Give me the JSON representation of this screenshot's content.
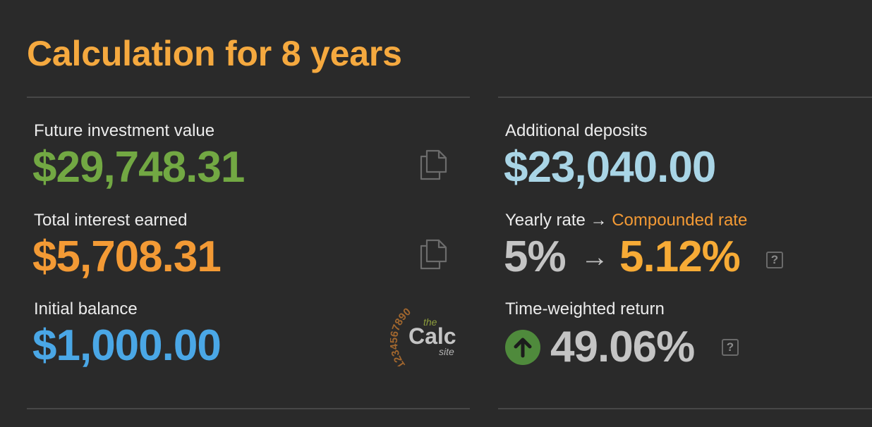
{
  "title": "Calculation for 8 years",
  "left": {
    "future_value": {
      "label": "Future investment value",
      "value": "$29,748.31"
    },
    "total_interest": {
      "label": "Total interest earned",
      "value": "$5,708.31"
    },
    "initial_balance": {
      "label": "Initial balance",
      "value": "$1,000.00"
    }
  },
  "right": {
    "additional_deposits": {
      "label": "Additional deposits",
      "value": "$23,040.00"
    },
    "rates": {
      "label_yearly": "Yearly rate →",
      "label_compounded": "Compounded rate",
      "yearly_value": "5%",
      "arrow": "→",
      "compounded_value": "5.12%"
    },
    "twr": {
      "label": "Time-weighted return",
      "value": "49.06%"
    }
  },
  "help_glyph": "?",
  "logo": {
    "digits": "1234567890",
    "the": "the",
    "calc": "Calc",
    "site": "site"
  },
  "icons": {
    "copy": "copy-icon",
    "help": "help-icon",
    "up_arrow": "arrow-up-circle-icon"
  },
  "colors": {
    "background": "#2a2a2a",
    "title": "#f5a93f",
    "future_value": "#72a843",
    "total_interest": "#f39a35",
    "initial_balance": "#4aa7e6",
    "additional_deposits": "#a9d5e6",
    "yearly_rate": "#c4c4c4",
    "compounded_rate": "#f7ab36",
    "twr": "#c4c4c4",
    "up_circle": "#4f8a3c"
  }
}
